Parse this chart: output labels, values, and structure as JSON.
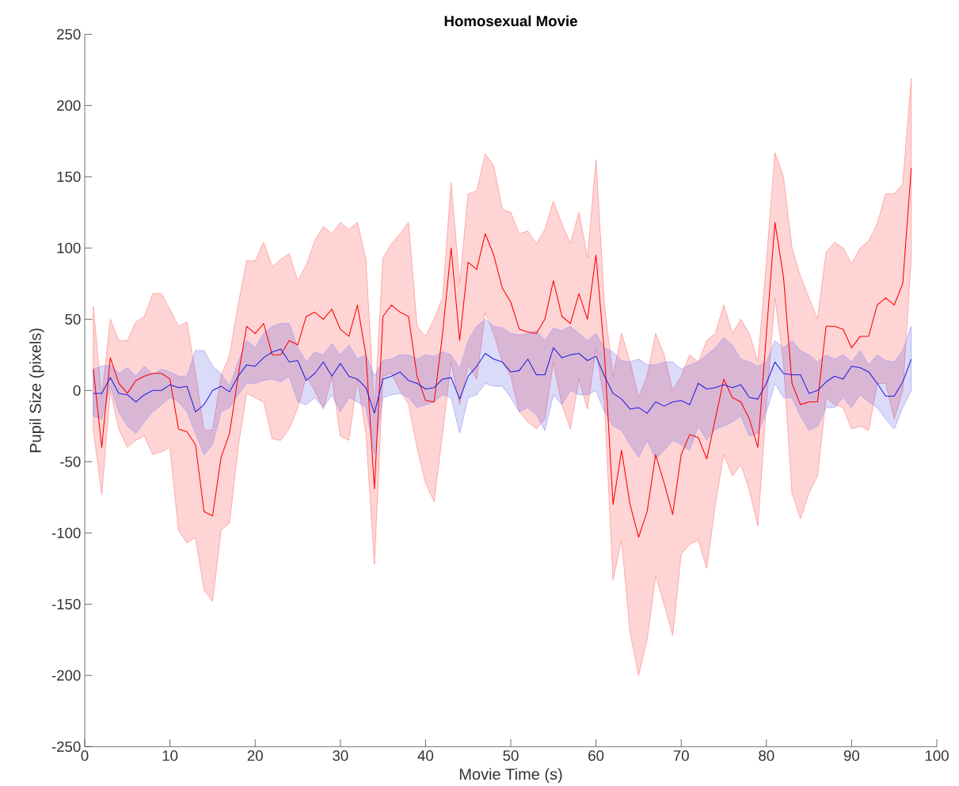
{
  "chart_data": {
    "type": "line",
    "title": "Homosexual Movie",
    "xlabel": "Movie Time (s)",
    "ylabel": "Pupil Size (pixels)",
    "xlim": [
      0,
      100
    ],
    "ylim": [
      -250,
      250
    ],
    "xticks": [
      0,
      10,
      20,
      30,
      40,
      50,
      60,
      70,
      80,
      90,
      100
    ],
    "yticks": [
      -250,
      -200,
      -150,
      -100,
      -50,
      0,
      50,
      100,
      150,
      200,
      250
    ],
    "x": [
      1,
      2,
      3,
      4,
      5,
      6,
      7,
      8,
      9,
      10,
      11,
      12,
      13,
      14,
      15,
      16,
      17,
      18,
      19,
      20,
      21,
      22,
      23,
      24,
      25,
      26,
      27,
      28,
      29,
      30,
      31,
      32,
      33,
      34,
      35,
      36,
      37,
      38,
      39,
      40,
      41,
      42,
      43,
      44,
      45,
      46,
      47,
      48,
      49,
      50,
      51,
      52,
      53,
      54,
      55,
      56,
      57,
      58,
      59,
      60,
      61,
      62,
      63,
      64,
      65,
      66,
      67,
      68,
      69,
      70,
      71,
      72,
      73,
      74,
      75,
      76,
      77,
      78,
      79,
      80,
      81,
      82,
      83,
      84,
      85,
      86,
      87,
      88,
      89,
      90,
      91,
      92,
      93,
      94,
      95,
      96,
      97
    ],
    "series": [
      {
        "color": "#ff0000",
        "values": [
          15,
          -40,
          23,
          5,
          -2,
          7,
          10,
          12,
          12,
          8,
          -27,
          -29,
          -38,
          -85,
          -88,
          -47,
          -30,
          10,
          45,
          40,
          47,
          25,
          25,
          35,
          32,
          52,
          55,
          50,
          57,
          43,
          38,
          60,
          25,
          -69,
          52,
          60,
          55,
          52,
          10,
          -7,
          -8,
          40,
          100,
          35,
          90,
          85,
          110,
          95,
          72,
          62,
          43,
          41,
          40,
          50,
          77,
          52,
          47,
          68,
          50,
          95,
          25,
          -80,
          -42,
          -80,
          -103,
          -85,
          -45,
          -65,
          -87,
          -45,
          -31,
          -33,
          -48,
          -20,
          8,
          -5,
          -8,
          -20,
          -40,
          40,
          118,
          80,
          5,
          -10,
          -8,
          -8,
          45,
          45,
          43,
          30,
          38,
          38,
          60,
          65,
          60,
          75,
          156
        ],
        "upper": [
          59,
          -5,
          50,
          35,
          35,
          48,
          52,
          68,
          68,
          57,
          45,
          48,
          12,
          -28,
          -28,
          10,
          25,
          60,
          91,
          91,
          104,
          87,
          92,
          96,
          77,
          88,
          105,
          115,
          110,
          118,
          113,
          118,
          92,
          -15,
          93,
          103,
          110,
          118,
          45,
          38,
          50,
          65,
          146,
          75,
          138,
          140,
          166,
          158,
          127,
          125,
          110,
          112,
          103,
          113,
          133,
          117,
          103,
          125,
          93,
          162,
          60,
          10,
          40,
          20,
          -5,
          10,
          40,
          25,
          0,
          10,
          25,
          20,
          35,
          40,
          60,
          40,
          50,
          40,
          20,
          90,
          167,
          150,
          100,
          80,
          65,
          50,
          97,
          104,
          100,
          89,
          100,
          105,
          117,
          138,
          138,
          145,
          219
        ],
        "lower": [
          -27,
          -73,
          0,
          -27,
          -40,
          -35,
          -32,
          -45,
          -43,
          -40,
          -98,
          -107,
          -103,
          -140,
          -148,
          -98,
          -93,
          -40,
          -2,
          -5,
          -8,
          -34,
          -35,
          -27,
          -12,
          10,
          0,
          -13,
          10,
          -32,
          -35,
          8,
          -30,
          -122,
          10,
          12,
          0,
          -10,
          -40,
          -65,
          -78,
          -30,
          20,
          -10,
          18,
          8,
          55,
          40,
          20,
          10,
          -15,
          -22,
          -27,
          -20,
          20,
          -10,
          -27,
          8,
          -13,
          30,
          -10,
          -133,
          -105,
          -170,
          -200,
          -175,
          -130,
          -150,
          -172,
          -115,
          -108,
          -105,
          -125,
          -80,
          -45,
          -60,
          -52,
          -70,
          -95,
          -10,
          65,
          20,
          -72,
          -90,
          -72,
          -60,
          -5,
          -10,
          -12,
          -27,
          -25,
          -28,
          5,
          5,
          -20,
          0,
          93
        ]
      },
      {
        "color": "#2222dd",
        "values": [
          -2,
          -2,
          9,
          -2,
          -3,
          -8,
          -3,
          0,
          0,
          4,
          2,
          3,
          -15,
          -10,
          0,
          3,
          -1,
          10,
          18,
          17,
          23,
          27,
          29,
          20,
          21,
          7,
          12,
          20,
          10,
          19,
          10,
          8,
          2,
          -16,
          8,
          10,
          13,
          7,
          5,
          1,
          2,
          8,
          9,
          -6,
          10,
          17,
          26,
          22,
          20,
          13,
          14,
          22,
          11,
          11,
          30,
          23,
          25,
          26,
          21,
          24,
          10,
          -2,
          -6,
          -13,
          -12,
          -16,
          -8,
          -11,
          -8,
          -7,
          -10,
          5,
          1,
          2,
          4,
          2,
          4,
          -5,
          -6,
          5,
          20,
          12,
          11,
          11,
          -2,
          0,
          6,
          10,
          8,
          17,
          16,
          13,
          5,
          -4,
          -4,
          6,
          22
        ],
        "upper": [
          15,
          17,
          18,
          12,
          16,
          10,
          17,
          11,
          15,
          13,
          10,
          10,
          28,
          28,
          17,
          12,
          3,
          20,
          35,
          30,
          40,
          45,
          47,
          47,
          30,
          20,
          27,
          25,
          33,
          25,
          32,
          22,
          25,
          10,
          21,
          22,
          25,
          25,
          22,
          25,
          24,
          27,
          25,
          15,
          35,
          45,
          50,
          45,
          44,
          40,
          39,
          40,
          42,
          35,
          44,
          42,
          45,
          40,
          35,
          40,
          30,
          27,
          21,
          20,
          22,
          18,
          18,
          20,
          20,
          15,
          18,
          20,
          25,
          30,
          37,
          32,
          22,
          20,
          17,
          20,
          35,
          30,
          35,
          28,
          25,
          20,
          25,
          22,
          25,
          20,
          28,
          18,
          25,
          21,
          20,
          28,
          45
        ],
        "lower": [
          -18,
          -20,
          3,
          -15,
          -25,
          -30,
          -22,
          -15,
          -10,
          -5,
          -8,
          -15,
          -30,
          -45,
          -38,
          -15,
          -12,
          -3,
          5,
          5,
          7,
          8,
          6,
          10,
          -8,
          -10,
          -5,
          -12,
          -3,
          -15,
          -5,
          -8,
          -12,
          -45,
          -5,
          -3,
          -2,
          -5,
          -12,
          -10,
          -8,
          -3,
          -5,
          -30,
          -5,
          -3,
          5,
          3,
          3,
          -5,
          -15,
          -12,
          -17,
          -28,
          -3,
          -10,
          0,
          -3,
          -3,
          0,
          -15,
          -25,
          -28,
          -38,
          -47,
          -35,
          -48,
          -42,
          -35,
          -38,
          -42,
          -25,
          -35,
          -27,
          -25,
          -22,
          -18,
          -32,
          -30,
          -15,
          5,
          -5,
          -5,
          -18,
          -28,
          -25,
          -12,
          -12,
          -5,
          -12,
          -3,
          -8,
          -12,
          -20,
          -27,
          -12,
          0
        ]
      }
    ]
  }
}
